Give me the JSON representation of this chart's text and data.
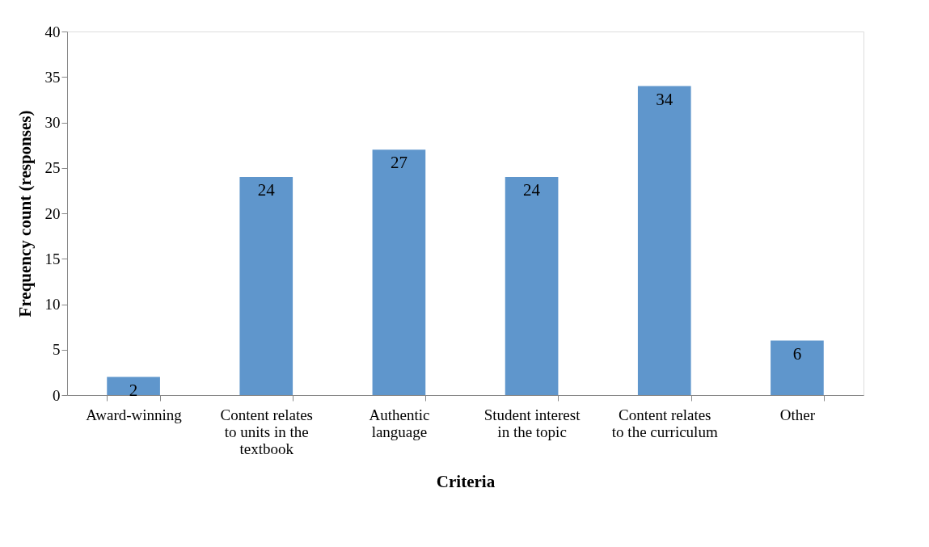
{
  "chart_data": {
    "type": "bar",
    "xlabel": "Criteria",
    "ylabel": "Frequency count (responses)",
    "categories": [
      "Award-winning",
      "Content relates to units in the textbook",
      "Authentic language",
      "Student interest in the topic",
      "Content relates to the curriculum",
      "Other"
    ],
    "values": [
      2,
      24,
      27,
      24,
      34,
      6
    ],
    "color": "#5f96cc",
    "ylim": [
      0,
      40
    ],
    "yticks": [
      0,
      5,
      10,
      15,
      20,
      25,
      30,
      35,
      40
    ],
    "grid": false,
    "data_labels": true
  }
}
